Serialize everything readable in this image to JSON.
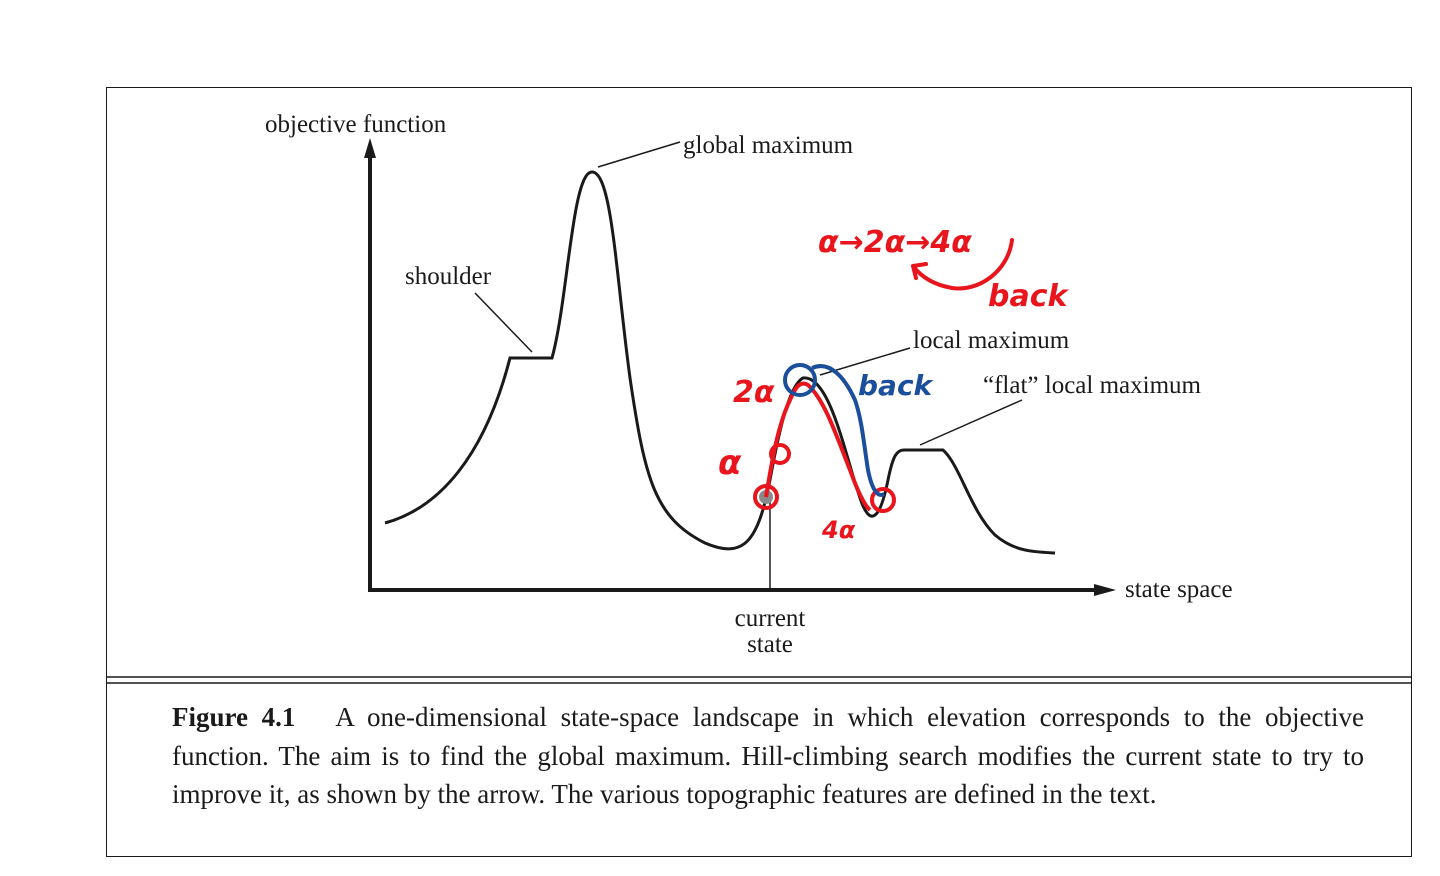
{
  "diagram": {
    "y_axis_label": "objective function",
    "x_axis_label": "state space",
    "labels": {
      "global_maximum": "global maximum",
      "shoulder": "shoulder",
      "local_maximum": "local maximum",
      "flat_local_maximum": "“flat” local maximum",
      "current_state_line1": "current",
      "current_state_line2": "state"
    },
    "annotations": {
      "sequence": "α→2α→4α",
      "back_red": "back",
      "back_blue": "back",
      "two_alpha": "2α",
      "alpha": "α",
      "four_alpha": "4α",
      "colors": {
        "red": "#e8151c",
        "blue": "#1b4f9c"
      }
    }
  },
  "caption": {
    "label": "Figure 4.1",
    "text": "A one-dimensional state-space landscape in which elevation corresponds to the objective function. The aim is to find the global maximum. Hill-climbing search modifies the current state to try to improve it, as shown by the arrow. The various topographic features are defined in the text."
  }
}
